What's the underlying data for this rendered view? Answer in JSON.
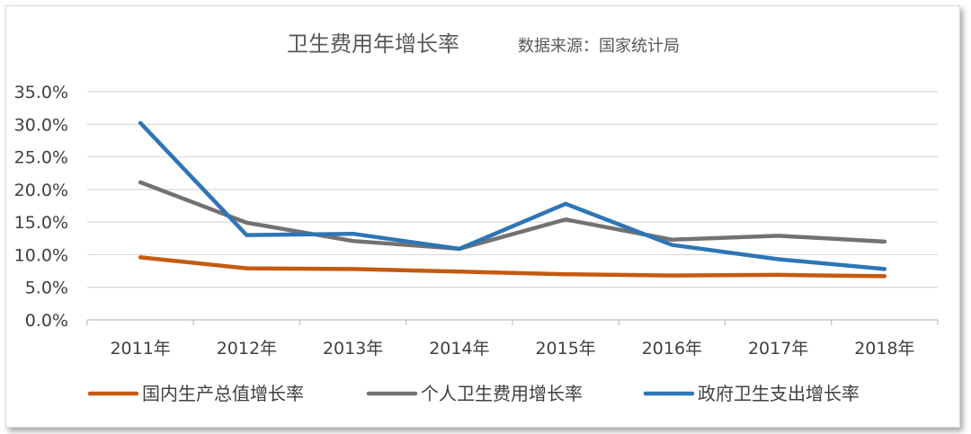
{
  "chart_data": {
    "type": "line",
    "title": "卫生费用年增长率",
    "subtitle": "数据来源：国家统计局",
    "categories": [
      "2011年",
      "2012年",
      "2013年",
      "2014年",
      "2015年",
      "2016年",
      "2017年",
      "2018年"
    ],
    "ylim": [
      0,
      35
    ],
    "yticks": [
      "0.0%",
      "5.0%",
      "10.0%",
      "15.0%",
      "20.0%",
      "25.0%",
      "30.0%",
      "35.0%"
    ],
    "grid": true,
    "legend_position": "bottom",
    "series": [
      {
        "name": "国内生产总值增长率",
        "color": "#C55A11",
        "values": [
          9.6,
          7.9,
          7.8,
          7.4,
          7.0,
          6.8,
          6.9,
          6.7
        ]
      },
      {
        "name": "个人卫生费用增长率",
        "color": "#767171",
        "values": [
          21.1,
          14.9,
          12.1,
          10.9,
          15.4,
          12.3,
          12.9,
          12.0
        ]
      },
      {
        "name": "政府卫生支出增长率",
        "color": "#2E75B6",
        "values": [
          30.2,
          13.0,
          13.2,
          10.9,
          17.8,
          11.5,
          9.3,
          7.8
        ]
      }
    ]
  }
}
